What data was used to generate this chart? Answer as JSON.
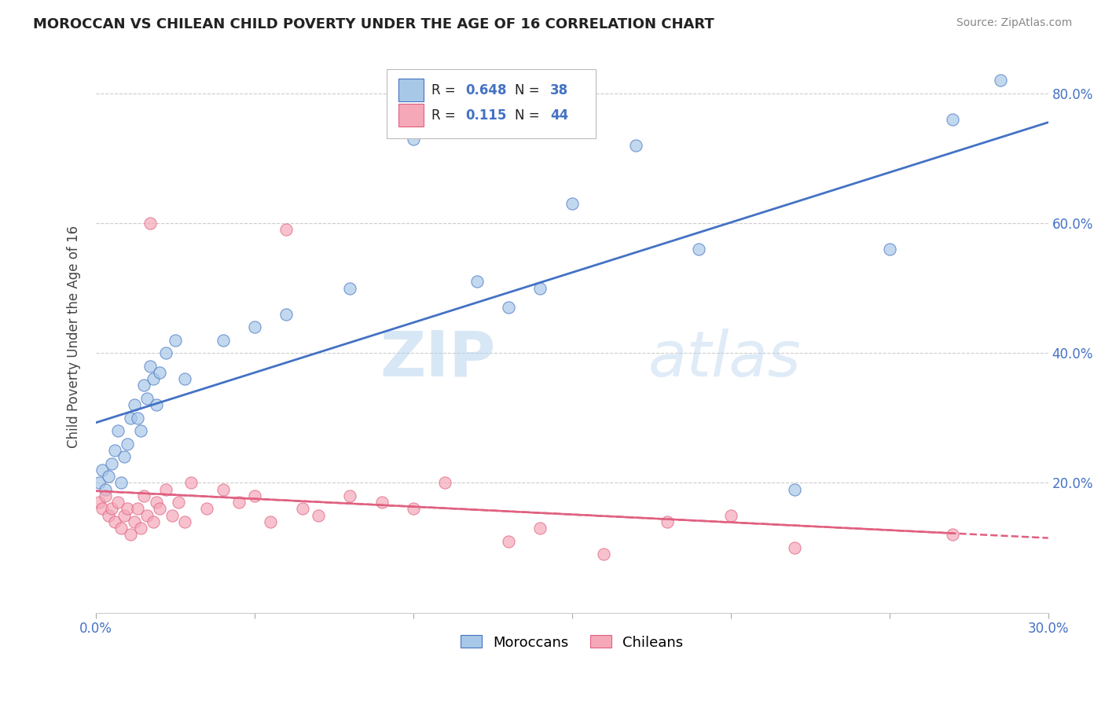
{
  "title": "MOROCCAN VS CHILEAN CHILD POVERTY UNDER THE AGE OF 16 CORRELATION CHART",
  "source": "Source: ZipAtlas.com",
  "ylabel": "Child Poverty Under the Age of 16",
  "xlabel": "",
  "legend_moroccan": "Moroccans",
  "legend_chilean": "Chileans",
  "moroccan_R": "0.648",
  "moroccan_N": "38",
  "chilean_R": "0.115",
  "chilean_N": "44",
  "xlim": [
    0.0,
    0.3
  ],
  "ylim": [
    0.0,
    0.85
  ],
  "moroccan_color": "#a8c8e8",
  "chilean_color": "#f4a8b8",
  "moroccan_line_color": "#4472c4",
  "chilean_line_color": "#e06080",
  "moroccan_points": [
    [
      0.001,
      0.2
    ],
    [
      0.002,
      0.22
    ],
    [
      0.003,
      0.19
    ],
    [
      0.004,
      0.21
    ],
    [
      0.005,
      0.23
    ],
    [
      0.006,
      0.25
    ],
    [
      0.007,
      0.28
    ],
    [
      0.008,
      0.2
    ],
    [
      0.009,
      0.24
    ],
    [
      0.01,
      0.26
    ],
    [
      0.011,
      0.3
    ],
    [
      0.012,
      0.32
    ],
    [
      0.013,
      0.3
    ],
    [
      0.014,
      0.28
    ],
    [
      0.015,
      0.35
    ],
    [
      0.016,
      0.33
    ],
    [
      0.017,
      0.38
    ],
    [
      0.018,
      0.36
    ],
    [
      0.019,
      0.32
    ],
    [
      0.02,
      0.37
    ],
    [
      0.022,
      0.4
    ],
    [
      0.025,
      0.42
    ],
    [
      0.028,
      0.36
    ],
    [
      0.04,
      0.42
    ],
    [
      0.05,
      0.44
    ],
    [
      0.06,
      0.46
    ],
    [
      0.08,
      0.5
    ],
    [
      0.1,
      0.73
    ],
    [
      0.12,
      0.51
    ],
    [
      0.13,
      0.47
    ],
    [
      0.14,
      0.5
    ],
    [
      0.15,
      0.63
    ],
    [
      0.17,
      0.72
    ],
    [
      0.19,
      0.56
    ],
    [
      0.22,
      0.19
    ],
    [
      0.25,
      0.56
    ],
    [
      0.27,
      0.76
    ],
    [
      0.285,
      0.82
    ]
  ],
  "chilean_points": [
    [
      0.001,
      0.17
    ],
    [
      0.002,
      0.16
    ],
    [
      0.003,
      0.18
    ],
    [
      0.004,
      0.15
    ],
    [
      0.005,
      0.16
    ],
    [
      0.006,
      0.14
    ],
    [
      0.007,
      0.17
    ],
    [
      0.008,
      0.13
    ],
    [
      0.009,
      0.15
    ],
    [
      0.01,
      0.16
    ],
    [
      0.011,
      0.12
    ],
    [
      0.012,
      0.14
    ],
    [
      0.013,
      0.16
    ],
    [
      0.014,
      0.13
    ],
    [
      0.015,
      0.18
    ],
    [
      0.016,
      0.15
    ],
    [
      0.017,
      0.6
    ],
    [
      0.018,
      0.14
    ],
    [
      0.019,
      0.17
    ],
    [
      0.02,
      0.16
    ],
    [
      0.022,
      0.19
    ],
    [
      0.024,
      0.15
    ],
    [
      0.026,
      0.17
    ],
    [
      0.028,
      0.14
    ],
    [
      0.03,
      0.2
    ],
    [
      0.035,
      0.16
    ],
    [
      0.04,
      0.19
    ],
    [
      0.045,
      0.17
    ],
    [
      0.05,
      0.18
    ],
    [
      0.055,
      0.14
    ],
    [
      0.06,
      0.59
    ],
    [
      0.065,
      0.16
    ],
    [
      0.07,
      0.15
    ],
    [
      0.08,
      0.18
    ],
    [
      0.09,
      0.17
    ],
    [
      0.1,
      0.16
    ],
    [
      0.11,
      0.2
    ],
    [
      0.13,
      0.11
    ],
    [
      0.14,
      0.13
    ],
    [
      0.16,
      0.09
    ],
    [
      0.18,
      0.14
    ],
    [
      0.2,
      0.15
    ],
    [
      0.22,
      0.1
    ],
    [
      0.27,
      0.12
    ]
  ],
  "watermark_zip": "ZIP",
  "watermark_atlas": "atlas",
  "background_color": "#ffffff",
  "grid_color": "#cccccc"
}
